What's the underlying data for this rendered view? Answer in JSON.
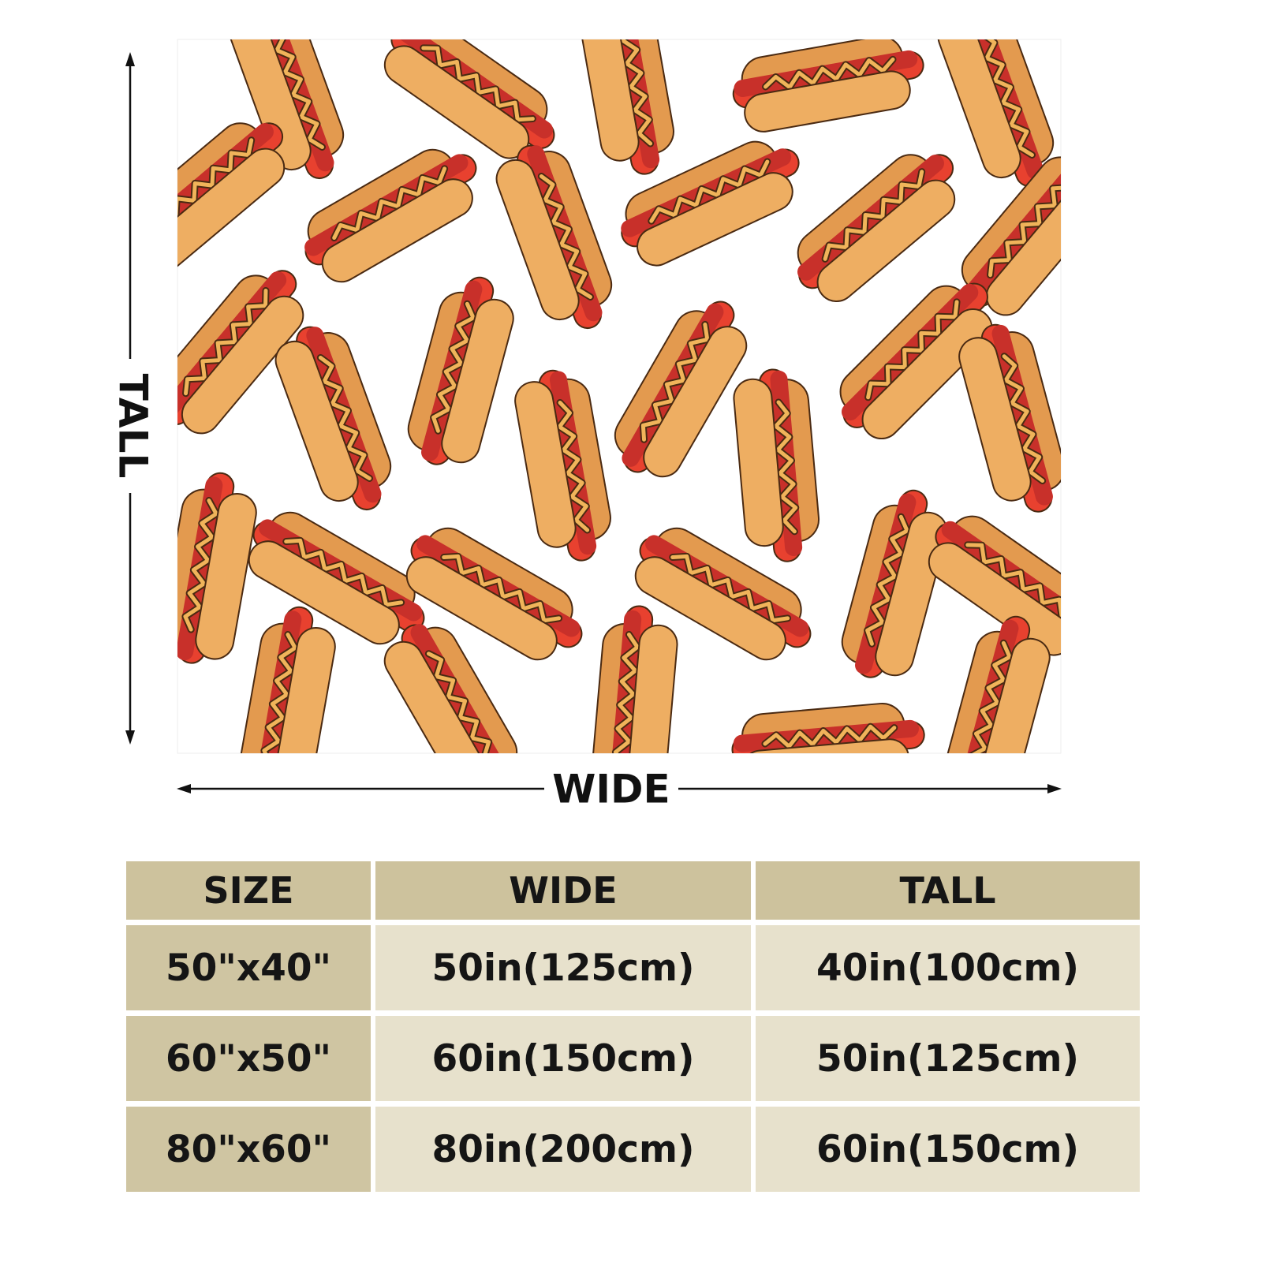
{
  "dimensions": {
    "tall": "TALL",
    "wide": "WIDE"
  },
  "table": {
    "header": [
      "SIZE",
      "WIDE",
      "TALL"
    ],
    "rows": [
      [
        "50\"x40\"",
        "50in(125cm)",
        "40in(100cm)"
      ],
      [
        "60\"x50\"",
        "60in(150cm)",
        "50in(125cm)"
      ],
      [
        "80\"x60\"",
        "80in(200cm)",
        "60in(150cm)"
      ]
    ]
  }
}
